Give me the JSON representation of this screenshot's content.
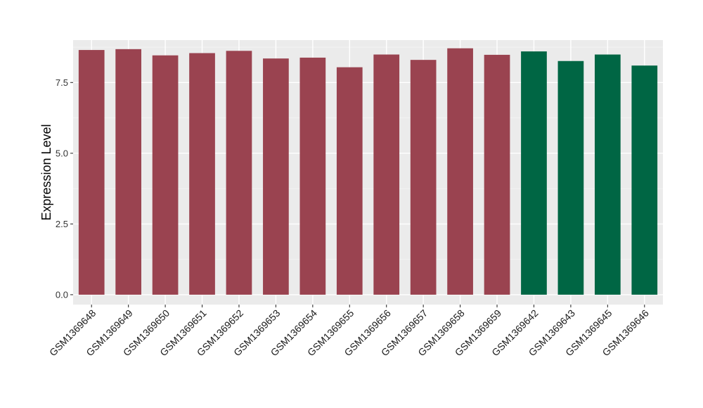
{
  "chart_data": {
    "type": "bar",
    "title": "",
    "xlabel": "",
    "ylabel": "Expression Level",
    "ylim": [
      -0.35,
      9.0
    ],
    "yticks": [
      0.0,
      2.5,
      5.0,
      7.5
    ],
    "ytick_labels": [
      "0.0",
      "2.5",
      "5.0",
      "7.5"
    ],
    "grid": true,
    "legend": "none",
    "categories": [
      "GSM1369648",
      "GSM1369649",
      "GSM1369650",
      "GSM1369651",
      "GSM1369652",
      "GSM1369653",
      "GSM1369654",
      "GSM1369655",
      "GSM1369656",
      "GSM1369657",
      "GSM1369658",
      "GSM1369659",
      "GSM1369642",
      "GSM1369643",
      "GSM1369645",
      "GSM1369646"
    ],
    "values": [
      8.65,
      8.68,
      8.46,
      8.54,
      8.62,
      8.35,
      8.38,
      8.04,
      8.49,
      8.3,
      8.71,
      8.48,
      8.6,
      8.26,
      8.49,
      8.1
    ],
    "bar_colors": [
      "#9a4350",
      "#9a4350",
      "#9a4350",
      "#9a4350",
      "#9a4350",
      "#9a4350",
      "#9a4350",
      "#9a4350",
      "#9a4350",
      "#9a4350",
      "#9a4350",
      "#9a4350",
      "#006644",
      "#006644",
      "#006644",
      "#006644"
    ],
    "colors": {
      "panel_background": "#ebebeb",
      "grid_major": "#ffffff",
      "grid_minor": "#f5f5f5",
      "tick": "#333333"
    }
  }
}
